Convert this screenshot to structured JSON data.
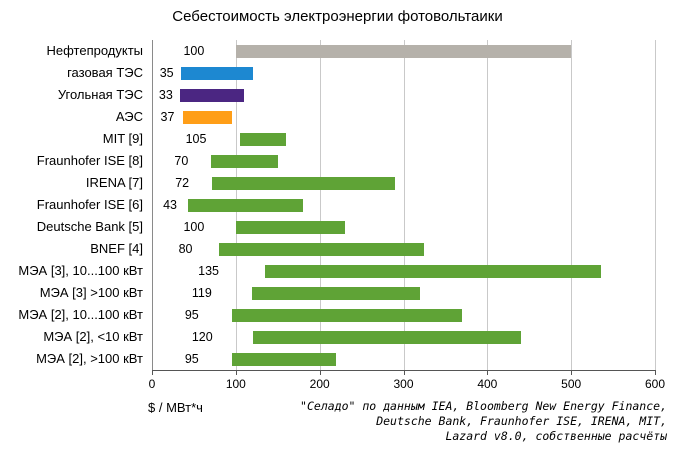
{
  "x_axis": {
    "label": "$ / МВт*ч",
    "ticks": [
      0,
      100,
      200,
      300,
      400,
      500,
      600
    ],
    "max": 600
  },
  "source_note": {
    "lines": [
      "\"Селадо\" по данным IEA, Bloomberg New Energy Finance,",
      "Deutsche Bank, Fraunhofer ISE, IRENA, MIT,",
      "Lazard v8.0, собственные расчёты"
    ]
  },
  "colors": {
    "oil": "#b5b1aa",
    "gas": "#1d88d1",
    "coal": "#4b2682",
    "nuclear": "#ff9e17",
    "pv_green": "#5fa336",
    "gridline": "#c9c9c9"
  },
  "chart_data": {
    "type": "bar",
    "orientation": "horizontal",
    "title": "Себестоимость электроэнергии фотовольтаики",
    "xlabel": "$ / МВт*ч",
    "xlim": [
      0,
      600
    ],
    "grid": "vertical",
    "legend": "none",
    "value_label": "min value shown left of each range bar",
    "rows": [
      {
        "label": "Нефтепродукты",
        "min": 100,
        "max": 500,
        "color": "#b5b1aa"
      },
      {
        "label": "газовая ТЭС",
        "min": 35,
        "max": 120,
        "color": "#1d88d1"
      },
      {
        "label": "Угольная ТЭС",
        "min": 33,
        "max": 110,
        "color": "#4b2682"
      },
      {
        "label": "АЭС",
        "min": 37,
        "max": 95,
        "color": "#ff9e17"
      },
      {
        "label": "MIT [9]",
        "min": 105,
        "max": 160,
        "color": "#5fa336"
      },
      {
        "label": "Fraunhofer ISE [8]",
        "min": 70,
        "max": 150,
        "color": "#5fa336"
      },
      {
        "label": "IRENA [7]",
        "min": 72,
        "max": 290,
        "color": "#5fa336"
      },
      {
        "label": "Fraunhofer ISE [6]",
        "min": 43,
        "max": 180,
        "color": "#5fa336"
      },
      {
        "label": "Deutsche Bank [5]",
        "min": 100,
        "max": 230,
        "color": "#5fa336"
      },
      {
        "label": "BNEF [4]",
        "min": 80,
        "max": 325,
        "color": "#5fa336"
      },
      {
        "label": "МЭА [3], 10...100 кВт",
        "min": 135,
        "max": 535,
        "color": "#5fa336"
      },
      {
        "label": "МЭА [3] >100 кВт",
        "min": 119,
        "max": 320,
        "color": "#5fa336"
      },
      {
        "label": "МЭА [2], 10...100 кВт",
        "min": 95,
        "max": 370,
        "color": "#5fa336"
      },
      {
        "label": "МЭА [2], <10 кВт",
        "min": 120,
        "max": 440,
        "color": "#5fa336"
      },
      {
        "label": "МЭА [2], >100 кВт",
        "min": 95,
        "max": 220,
        "color": "#5fa336"
      }
    ]
  }
}
